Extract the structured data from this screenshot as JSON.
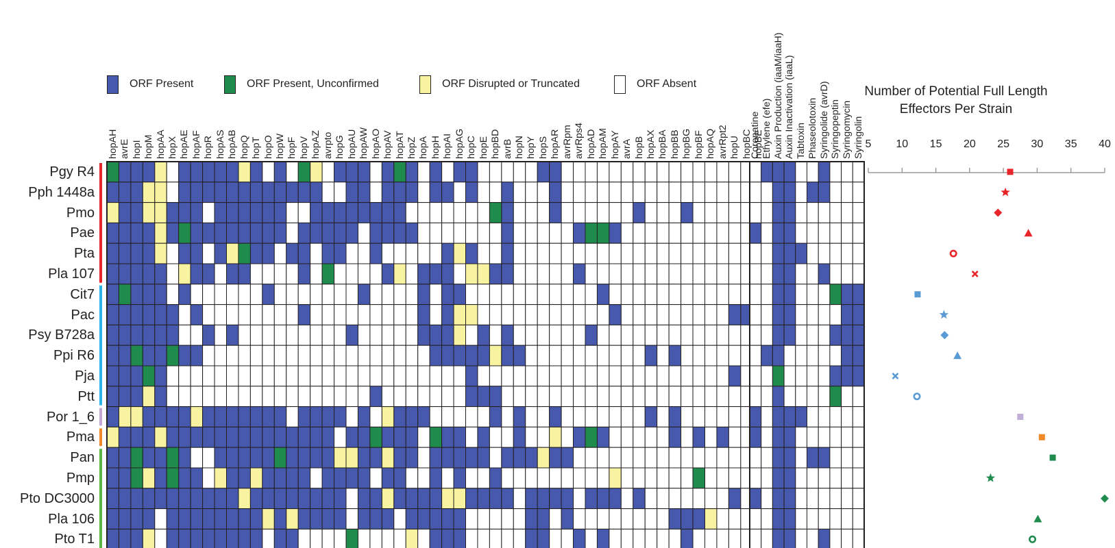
{
  "colors": {
    "present": "#4659ad",
    "unconfirmed": "#1f8c4e",
    "disrupted": "#f8f3a0",
    "absent": "#ffffff",
    "grid": "#231f20"
  },
  "legend": [
    {
      "key": "P",
      "label": "ORF Present",
      "color": "#4659ad"
    },
    {
      "key": "U",
      "label": "ORF Present, Unconfirmed",
      "color": "#1f8c4e"
    },
    {
      "key": "D",
      "label": "ORF Disrupted or Truncated",
      "color": "#f8f3a0"
    },
    {
      "key": ".",
      "label": "ORF Absent",
      "color": "#ffffff"
    }
  ],
  "strains": [
    "Pgy R4",
    "Pph 1448a",
    "Pmo",
    "Pae",
    "Pta",
    "Pla 107",
    "Cit7",
    "Pac",
    "Psy B728a",
    "Ppi R6",
    "Pja",
    "Ptt",
    "Por 1_6",
    "Pma",
    "Pan",
    "Pmp",
    "Pto DC3000",
    "Pla 106",
    "Pto T1"
  ],
  "strain_groups": [
    {
      "color": "#e8262a",
      "count": 6
    },
    {
      "color": "#2bb5e6",
      "count": 6
    },
    {
      "color": "#c6a8d4",
      "count": 1
    },
    {
      "color": "#f28a2b",
      "count": 1
    },
    {
      "color": "#5db548",
      "count": 5
    }
  ],
  "effector_columns": [
    "hopAH",
    "avrE",
    "hopI",
    "hopM",
    "hopAA",
    "hopX",
    "hopAE",
    "hopAF",
    "hopR",
    "hopAS",
    "hopAB",
    "hopQ",
    "hopT",
    "hopO",
    "hopW",
    "hopF",
    "hopV",
    "hopAZ",
    "avrpto",
    "hopG",
    "hopAU",
    "hopAW",
    "hopAO",
    "hopAV",
    "hopAT",
    "hopZ",
    "hopA",
    "hopH",
    "hopAI",
    "hopAG",
    "hopC",
    "hopE",
    "hopBD",
    "avrB",
    "hopN",
    "hopY",
    "hopS",
    "hopAR",
    "avrRpm",
    "avrRps4",
    "hopAD",
    "hopAM",
    "hopAY",
    "avrA",
    "hopB",
    "hopAX",
    "hopBA",
    "hopBB",
    "hopBG",
    "hopBF",
    "hopAQ",
    "avrRpt2",
    "hopU",
    "hopBC",
    "hopBE"
  ],
  "effector_matrix": [
    "UPPPD.PPPPPDP.P.UD.PPP.PUP.P.PP.....PP.................",
    "PPPDD.PPPPPPPPPPPP..PP.PPP.PP.P..P...P.................",
    "DPPDDPPP.PPPPPP..PPPPPPPP.......UP...P......P...P......",
    "PPPPDPUPPPPPPPP.PPPPP.PPPP.......P.....PUUP............",
    "PPPPD.PP.PDUPP.PP.PP..P.....PDP..P.....................",
    "PPPPP.DPP.PP....P.U....PD.PPP.DDPP.....P...............",
    "PUPPP.P......P.......P....P.PP...........P............",
    "PPPPPP.P........P.........P.PDD...........P.........PP",
    "PPPPPP..P.P.........P.....PPPD.P.P......P..............",
    "PPUPPUPP...................PPPPPDPP..........P.P.........",
    "PPPUP.........................P.....................P..",
    "PPPDP.................P.......PPP........................",
    "PDDPPPPDPPPPPPP.PPPP.P.DPPP.....P.P..P.......P.P........",
    "DPPPDPPPPPPPPPPPPPP.PPUPPP.UPP.P..P..D.PUP.....P.P.P....",
    "PPUPPUP..PPPPPUPPPPDDPPDPP.PPPPP.PPPDPP.............",
    "PPUDPUPP.DPPDPPPP.PPPP.PP..P.P..P.........D......U.....",
    "PPPPPPPPPPPDPPPPPPPP.PPDPPPPDDPPPP.PPPP.PPP.P.......P..",
    "PPPP.PPPPPPPPDPDPPPP.PPP.PPPPP.....PP.P........PPPD....",
    "PPPD.PPPPPPPP.PP....U....D.PPP.....PP..P.P......P.......P"
  ],
  "other_columns": [
    "Coronatine",
    "Ethylene (efe)",
    "Auxin Production (iaaM/iaaH)",
    "Auxin Inactivation (iaaL)",
    "Tabtoxin",
    "Phaseolotoxin",
    "Syringolide (avrD)",
    "Syringopeptin",
    "Syringomycin",
    "Syringolin"
  ],
  "other_matrix": [
    ".PPP..P...",
    "..PP.PP...",
    "..PP......",
    "P.PP......",
    "..PPP.....",
    "..PP..P...",
    "..PP...UPP",
    "..PP....PP",
    "..PP...PPP",
    ".PP.....PP",
    "..U....PPP",
    "..P....U..",
    "P.PPP.....",
    "P.PP......",
    "..PP.PP...",
    "..PP......",
    "P.PP......",
    "..PP......",
    "..PP..P..."
  ],
  "chart_data": {
    "type": "scatter",
    "title": "Number of Potential Full Length Effectors Per Strain",
    "x_ticks": [
      5,
      10,
      15,
      20,
      25,
      30,
      35,
      40
    ],
    "xlim": [
      5,
      40
    ],
    "points": [
      {
        "strain": "Pgy R4",
        "value": 26,
        "color": "#e8262a",
        "marker": "square"
      },
      {
        "strain": "Pph 1448a",
        "value": 25.3,
        "color": "#e8262a",
        "marker": "star"
      },
      {
        "strain": "Pmo",
        "value": 24.2,
        "color": "#e8262a",
        "marker": "diamond"
      },
      {
        "strain": "Pae",
        "value": 28.7,
        "color": "#e8262a",
        "marker": "triangle"
      },
      {
        "strain": "Pta",
        "value": 17.6,
        "color": "#e8262a",
        "marker": "circle"
      },
      {
        "strain": "Pla 107",
        "value": 20.8,
        "color": "#e8262a",
        "marker": "cross"
      },
      {
        "strain": "Cit7",
        "value": 12.3,
        "color": "#5b9bd5",
        "marker": "square"
      },
      {
        "strain": "Pac",
        "value": 16.2,
        "color": "#5b9bd5",
        "marker": "star"
      },
      {
        "strain": "Psy B728a",
        "value": 16.3,
        "color": "#5b9bd5",
        "marker": "diamond"
      },
      {
        "strain": "Ppi R6",
        "value": 18.2,
        "color": "#5b9bd5",
        "marker": "triangle"
      },
      {
        "strain": "Pja",
        "value": 9,
        "color": "#5b9bd5",
        "marker": "cross"
      },
      {
        "strain": "Ptt",
        "value": 12.2,
        "color": "#5b9bd5",
        "marker": "circle"
      },
      {
        "strain": "Por 1_6",
        "value": 27.5,
        "color": "#bfaed5",
        "marker": "square"
      },
      {
        "strain": "Pma",
        "value": 30.7,
        "color": "#f28a2b",
        "marker": "square"
      },
      {
        "strain": "Pan",
        "value": 32.3,
        "color": "#1f8c4e",
        "marker": "square"
      },
      {
        "strain": "Pmp",
        "value": 23.1,
        "color": "#1f8c4e",
        "marker": "star"
      },
      {
        "strain": "Pto DC3000",
        "value": 40,
        "color": "#1f8c4e",
        "marker": "diamond"
      },
      {
        "strain": "Pla 106",
        "value": 30.1,
        "color": "#1f8c4e",
        "marker": "triangle"
      },
      {
        "strain": "Pto T1",
        "value": 29.3,
        "color": "#1f8c4e",
        "marker": "circle"
      }
    ]
  }
}
